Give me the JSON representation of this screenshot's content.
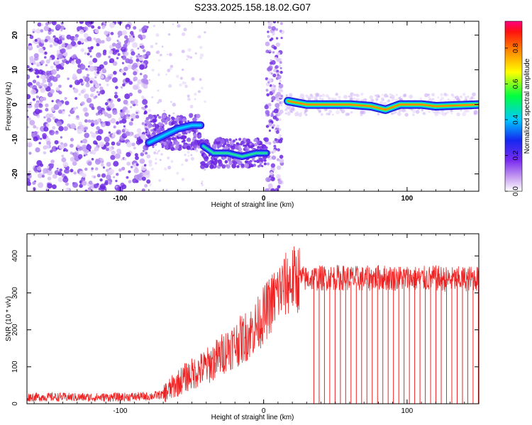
{
  "title": "S233.2025.158.18.02.G07",
  "chart_data": [
    {
      "type": "heatmap",
      "xlabel": "Height of straight line (km)",
      "ylabel": "Frequency (Hz)",
      "xlim": [
        -165,
        150
      ],
      "ylim": [
        -25,
        24
      ],
      "xticks": [
        "-100",
        "0",
        "100"
      ],
      "yticks": [
        "-20",
        "-10",
        "0",
        "10",
        "20"
      ],
      "colorbar": {
        "label": "Normalized spectral amplitude",
        "range": [
          0,
          0.95
        ],
        "ticks": [
          "0.0",
          "0.2",
          "0.4",
          "0.6",
          "0.8"
        ]
      },
      "ridge": [
        {
          "x": -80,
          "y": -11
        },
        {
          "x": -70,
          "y": -9
        },
        {
          "x": -60,
          "y": -7
        },
        {
          "x": -50,
          "y": -6
        },
        {
          "x": -44,
          "y": -6
        },
        {
          "x": -42,
          "y": -12
        },
        {
          "x": -35,
          "y": -14
        },
        {
          "x": -25,
          "y": -14
        },
        {
          "x": -15,
          "y": -15
        },
        {
          "x": -5,
          "y": -14
        },
        {
          "x": 2,
          "y": -14
        },
        {
          "x": 17,
          "y": 1
        },
        {
          "x": 30,
          "y": 0
        },
        {
          "x": 60,
          "y": 0
        },
        {
          "x": 75,
          "y": -0.5
        },
        {
          "x": 85,
          "y": -1.5
        },
        {
          "x": 95,
          "y": 0
        },
        {
          "x": 110,
          "y": 0
        },
        {
          "x": 120,
          "y": -0.5
        },
        {
          "x": 150,
          "y": 0
        }
      ]
    },
    {
      "type": "line",
      "xlabel": "Height of straight line (km)",
      "ylabel": "SNR (10 * v/v)",
      "xlim": [
        -165,
        150
      ],
      "ylim": [
        0,
        460
      ],
      "xticks": [
        "-100",
        "0",
        "100"
      ],
      "yticks": [
        "0",
        "100",
        "200",
        "300",
        "400"
      ],
      "series": [
        {
          "color": "#ee2222",
          "x": [
            -165,
            -140,
            -120,
            -100,
            -80,
            -70,
            -65,
            -60,
            -55,
            -50,
            -45,
            -40,
            -35,
            -30,
            -25,
            -20,
            -15,
            -10,
            -5,
            0,
            5,
            10,
            15,
            20,
            25,
            30,
            35,
            40,
            50,
            60,
            70,
            80,
            90,
            100,
            110,
            120,
            130,
            140,
            150
          ],
          "values": [
            18,
            18,
            17,
            18,
            20,
            25,
            40,
            55,
            70,
            80,
            90,
            100,
            115,
            130,
            150,
            160,
            175,
            190,
            210,
            240,
            270,
            300,
            320,
            335,
            340,
            338,
            340,
            340,
            342,
            340,
            338,
            342,
            340,
            340,
            338,
            340,
            336,
            338,
            340
          ]
        }
      ],
      "dropouts_x_start": 35,
      "dropouts_spacing": 3.7
    }
  ]
}
